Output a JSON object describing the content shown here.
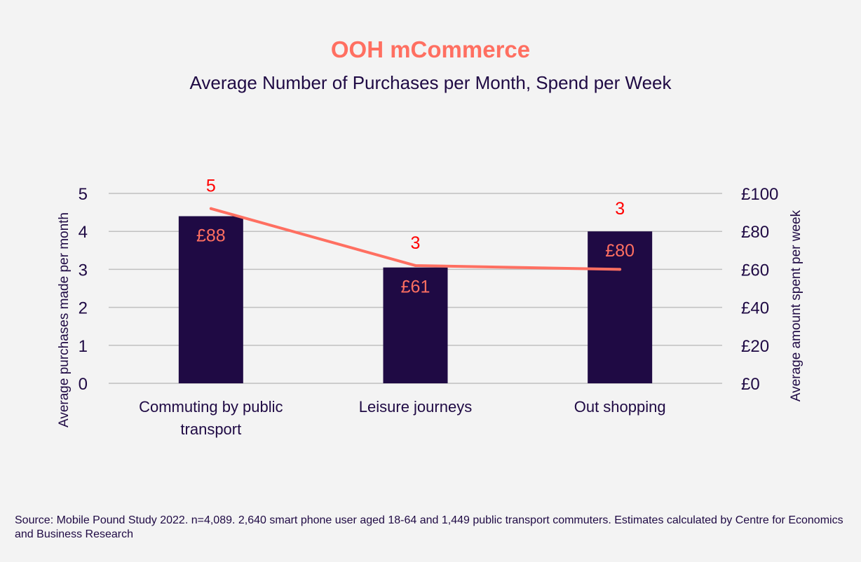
{
  "chart_data": {
    "type": "bar+line",
    "title": "OOH mCommerce",
    "subtitle": "Average Number of Purchases per Month, Spend per Week",
    "categories": [
      [
        "Commuting by public",
        "transport"
      ],
      [
        "Leisure journeys"
      ],
      [
        "Out shopping"
      ]
    ],
    "series": [
      {
        "name": "Average amount spent per week",
        "type": "bar",
        "axis": "right",
        "values": [
          88,
          61,
          80
        ],
        "labels": [
          "£88",
          "£61",
          "£80"
        ],
        "color": "#1f0a44",
        "label_color": "#ff6f61"
      },
      {
        "name": "Average purchases made per month",
        "type": "line",
        "axis": "left",
        "values": [
          4.6,
          3.1,
          3.0
        ],
        "labels": [
          "5",
          "3",
          "3"
        ],
        "color": "#ff6f61",
        "label_color": "#ff0000"
      }
    ],
    "ylabel_left": "Average purchases made per month",
    "ylabel_right": "Average amount spent per week",
    "ylim_left": [
      0,
      5
    ],
    "ylim_right": [
      0,
      100
    ],
    "yticks_left": [
      "0",
      "1",
      "2",
      "3",
      "4",
      "5"
    ],
    "yticks_right": [
      "£0",
      "£20",
      "£40",
      "£60",
      "£80",
      "£100"
    ],
    "grid": true
  },
  "footer": {
    "source": "Source: Mobile Pound Study 2022. n=4,089. 2,640 smart phone user aged 18-64 and 1,449 public transport commuters. Estimates calculated by Centre for Economics and Business Research"
  }
}
